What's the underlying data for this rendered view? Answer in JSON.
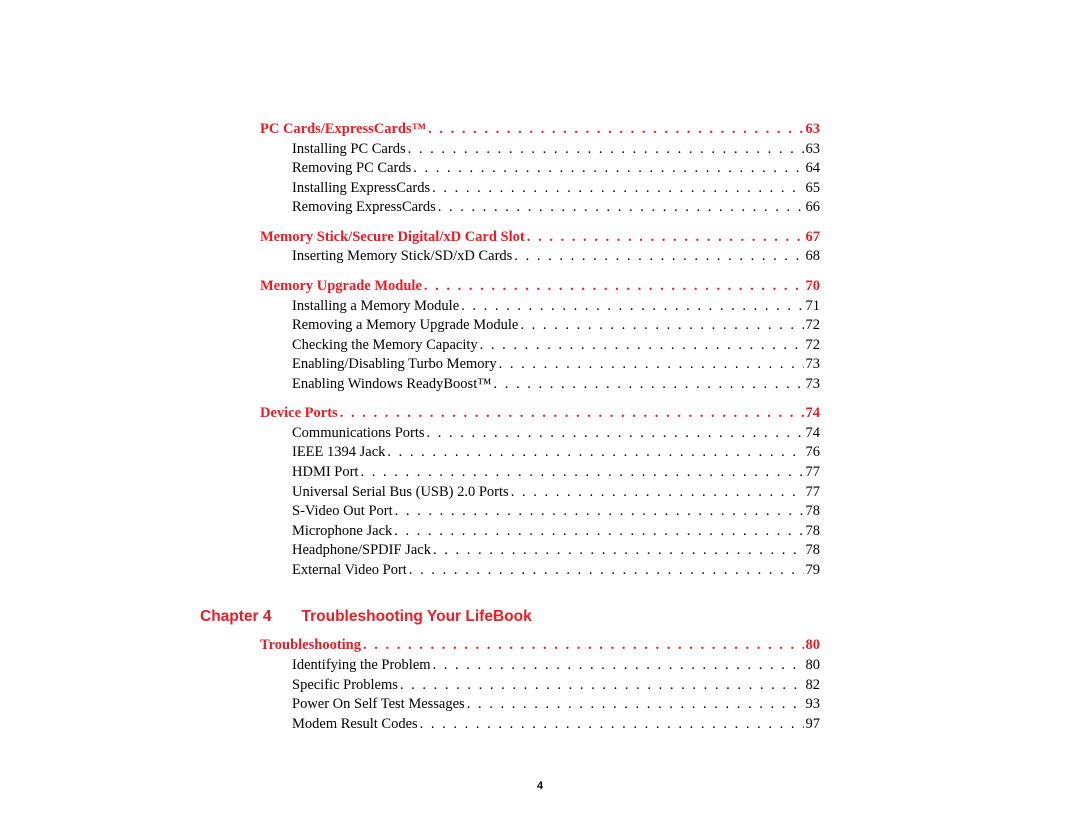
{
  "sections": [
    {
      "title": "PC Cards/ExpressCards™",
      "page": "63",
      "items": [
        {
          "label": "Installing PC Cards",
          "page": "63"
        },
        {
          "label": "Removing PC Cards",
          "page": "64"
        },
        {
          "label": "Installing ExpressCards",
          "page": "65"
        },
        {
          "label": "Removing ExpressCards",
          "page": "66"
        }
      ]
    },
    {
      "title": "Memory Stick/Secure Digital/xD Card Slot",
      "page": "67",
      "items": [
        {
          "label": "Inserting Memory Stick/SD/xD Cards",
          "page": "68"
        }
      ]
    },
    {
      "title": "Memory Upgrade Module",
      "page": "70",
      "items": [
        {
          "label": "Installing a Memory Module",
          "page": "71"
        },
        {
          "label": "Removing a Memory Upgrade Module",
          "page": "72"
        },
        {
          "label": "Checking the Memory Capacity",
          "page": "72"
        },
        {
          "label": "Enabling/Disabling Turbo Memory",
          "page": "73"
        },
        {
          "label": "Enabling Windows ReadyBoost™",
          "page": "73"
        }
      ]
    },
    {
      "title": "Device Ports",
      "page": "74",
      "items": [
        {
          "label": "Communications Ports",
          "page": "74"
        },
        {
          "label": "IEEE 1394 Jack",
          "page": "76"
        },
        {
          "label": "HDMI Port",
          "page": "77"
        },
        {
          "label": "Universal Serial Bus (USB) 2.0 Ports",
          "page": "77"
        },
        {
          "label": "S-Video Out Port",
          "page": "78"
        },
        {
          "label": "Microphone Jack",
          "page": "78"
        },
        {
          "label": "Headphone/SPDIF Jack",
          "page": "78"
        },
        {
          "label": "External Video Port",
          "page": "79"
        }
      ]
    }
  ],
  "chapter": {
    "number": "Chapter 4",
    "title": "Troubleshooting Your LifeBook"
  },
  "chapter_sections": [
    {
      "title": "Troubleshooting",
      "page": "80",
      "items": [
        {
          "label": "Identifying the Problem",
          "page": "80"
        },
        {
          "label": "Specific Problems",
          "page": "82"
        },
        {
          "label": "Power On Self Test Messages",
          "page": "93"
        },
        {
          "label": "Modem Result Codes",
          "page": "97"
        }
      ]
    }
  ],
  "footer_page": "4",
  "colors": {
    "heading": "#ed1c24",
    "text": "#000000",
    "background": "#ffffff"
  }
}
